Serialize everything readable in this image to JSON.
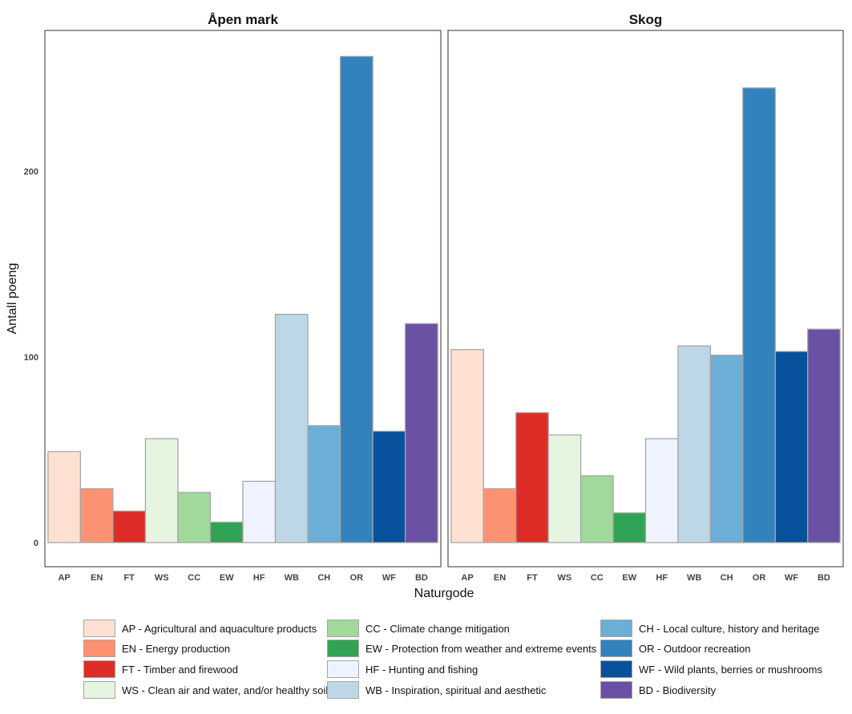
{
  "chart_data": {
    "type": "bar",
    "ylabel": "Antall poeng",
    "xlabel": "Naturgode",
    "ylim": [
      -13,
      276
    ],
    "yticks": [
      0,
      100,
      200
    ],
    "categories": [
      "AP",
      "EN",
      "FT",
      "WS",
      "CC",
      "EW",
      "HF",
      "WB",
      "CH",
      "OR",
      "WF",
      "BD"
    ],
    "colors": {
      "AP": "#fde0d2",
      "EN": "#fc9272",
      "FT": "#de2d26",
      "WS": "#e5f5e0",
      "CC": "#a1d99b",
      "EW": "#31a354",
      "HF": "#eff3ff",
      "WB": "#bdd7e7",
      "CH": "#6baed6",
      "OR": "#3182bd",
      "WF": "#08519c",
      "BD": "#6a51a3"
    },
    "panels": [
      {
        "title": "Åpen mark",
        "values": [
          49,
          29,
          17,
          56,
          27,
          11,
          33,
          123,
          63,
          262,
          60,
          118
        ]
      },
      {
        "title": "Skog",
        "values": [
          104,
          29,
          70,
          58,
          36,
          16,
          56,
          106,
          101,
          245,
          103,
          115
        ]
      }
    ],
    "legend": [
      {
        "code": "AP",
        "label": "AP - Agricultural and aquaculture products"
      },
      {
        "code": "EN",
        "label": "EN - Energy production"
      },
      {
        "code": "FT",
        "label": "FT - Timber and firewood"
      },
      {
        "code": "WS",
        "label": "WS - Clean air and water, and/or healthy soil"
      },
      {
        "code": "CC",
        "label": "CC - Climate change mitigation"
      },
      {
        "code": "EW",
        "label": "EW - Protection from weather and extreme events"
      },
      {
        "code": "HF",
        "label": "HF - Hunting and fishing"
      },
      {
        "code": "WB",
        "label": "WB - Inspiration, spiritual and aesthetic"
      },
      {
        "code": "CH",
        "label": "CH - Local culture, history and heritage"
      },
      {
        "code": "OR",
        "label": "OR - Outdoor recreation"
      },
      {
        "code": "WF",
        "label": "WF - Wild plants, berries or mushrooms"
      },
      {
        "code": "BD",
        "label": "BD - Biodiversity"
      }
    ]
  }
}
